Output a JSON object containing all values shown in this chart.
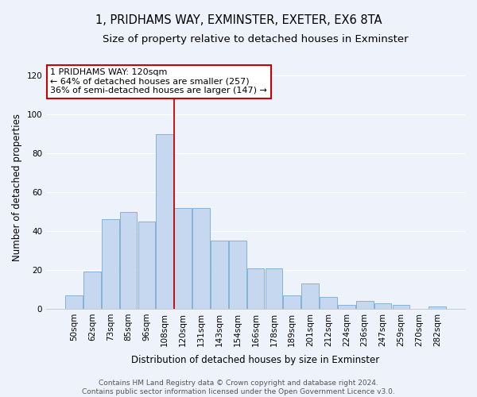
{
  "title": "1, PRIDHAMS WAY, EXMINSTER, EXETER, EX6 8TA",
  "subtitle": "Size of property relative to detached houses in Exminster",
  "xlabel": "Distribution of detached houses by size in Exminster",
  "ylabel": "Number of detached properties",
  "bar_color": "#c5d8f0",
  "bar_edge_color": "#7aaad0",
  "categories": [
    "50sqm",
    "62sqm",
    "73sqm",
    "85sqm",
    "96sqm",
    "108sqm",
    "120sqm",
    "131sqm",
    "143sqm",
    "154sqm",
    "166sqm",
    "178sqm",
    "189sqm",
    "201sqm",
    "212sqm",
    "224sqm",
    "236sqm",
    "247sqm",
    "259sqm",
    "270sqm",
    "282sqm"
  ],
  "values": [
    7,
    19,
    46,
    50,
    45,
    90,
    52,
    52,
    35,
    35,
    21,
    21,
    7,
    13,
    6,
    2,
    4,
    3,
    2,
    0,
    1
  ],
  "vline_x_index": 6,
  "vline_color": "#cc0000",
  "ylim": [
    0,
    125
  ],
  "yticks": [
    0,
    20,
    40,
    60,
    80,
    100,
    120
  ],
  "annotation_text": "1 PRIDHAMS WAY: 120sqm\n← 64% of detached houses are smaller (257)\n36% of semi-detached houses are larger (147) →",
  "annotation_box_facecolor": "#ffffff",
  "annotation_box_edgecolor": "#cc0000",
  "footer_text": "Contains HM Land Registry data © Crown copyright and database right 2024.\nContains public sector information licensed under the Open Government Licence v3.0.",
  "background_color": "#edf2fb",
  "grid_color": "#ffffff",
  "title_fontsize": 10.5,
  "subtitle_fontsize": 9.5,
  "xlabel_fontsize": 8.5,
  "ylabel_fontsize": 8.5,
  "tick_fontsize": 7.5,
  "annotation_fontsize": 8,
  "footer_fontsize": 6.5
}
